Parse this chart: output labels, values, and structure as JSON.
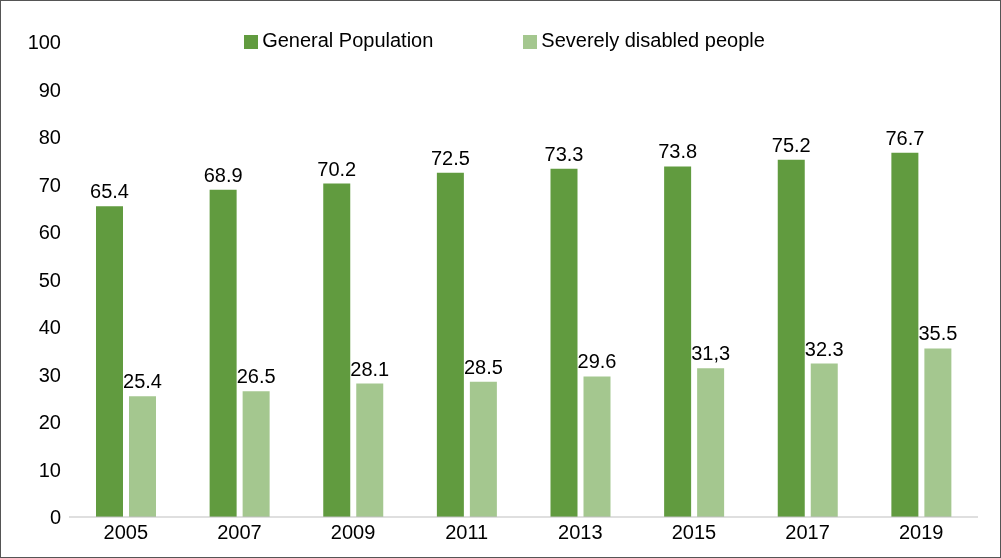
{
  "chart_data": {
    "type": "bar",
    "categories": [
      "2005",
      "2007",
      "2009",
      "2011",
      "2013",
      "2015",
      "2017",
      "2019"
    ],
    "series": [
      {
        "name": "General Population",
        "color": "#619b3f",
        "values": [
          65.4,
          68.9,
          70.2,
          72.5,
          73.3,
          73.8,
          75.2,
          76.7
        ],
        "value_labels": [
          "65.4",
          "68.9",
          "70.2",
          "72.5",
          "73.3",
          "73.8",
          "75.2",
          "76.7"
        ]
      },
      {
        "name": "Severely disabled people",
        "color": "#a4c78f",
        "values": [
          25.4,
          26.5,
          28.1,
          28.5,
          29.6,
          31.3,
          32.3,
          35.5
        ],
        "value_labels": [
          "25.4",
          "26.5",
          "28.1",
          "28.5",
          "29.6",
          "31,3",
          "32.3",
          "35.5"
        ]
      }
    ],
    "ylim": [
      0,
      100
    ],
    "yticks": [
      0,
      10,
      20,
      30,
      40,
      50,
      60,
      70,
      80,
      90,
      100
    ],
    "grid": false,
    "legend": "top"
  }
}
